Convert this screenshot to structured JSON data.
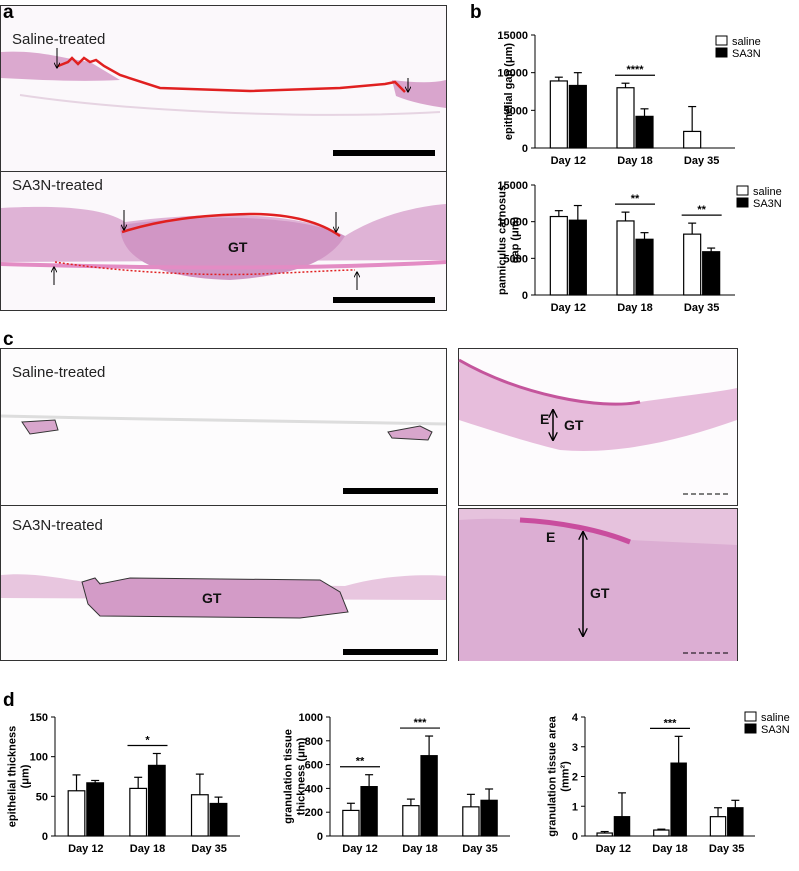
{
  "panel_labels": [
    "a",
    "b",
    "c",
    "d"
  ],
  "images": {
    "a_saline": {
      "title": "Saline-treated"
    },
    "a_sa3n": {
      "title": "SA3N-treated",
      "label": "GT"
    },
    "c_saline": {
      "title": "Saline-treated"
    },
    "c_sa3n": {
      "title": "SA3N-treated",
      "label": "GT"
    },
    "c_saline_zoom": {
      "labels": [
        "E",
        "GT"
      ]
    },
    "c_sa3n_zoom": {
      "labels": [
        "E",
        "GT"
      ]
    }
  },
  "chart_data": [
    {
      "type": "bar",
      "categories": [
        "Day 12",
        "Day 18",
        "Day 35"
      ],
      "ylabel": [
        "epithelial gap (μm)"
      ],
      "series": [
        {
          "name": "saline",
          "color": "#ffffff",
          "values": [
            8900,
            8000,
            2200
          ],
          "errors": [
            500,
            600,
            3300
          ]
        },
        {
          "name": "SA3N",
          "color": "#000000",
          "values": [
            8300,
            4200,
            null
          ],
          "errors": [
            1700,
            1000,
            null
          ]
        }
      ],
      "ylim": [
        0,
        15000
      ],
      "yticks": [
        0,
        5000,
        10000,
        15000
      ],
      "legend": true,
      "annotations": [
        {
          "text": "****",
          "x": "Day 18"
        }
      ]
    },
    {
      "type": "bar",
      "categories": [
        "Day 12",
        "Day 18",
        "Day 35"
      ],
      "ylabel": [
        "panniculus carnosus",
        "gap (μm)"
      ],
      "series": [
        {
          "name": "saline",
          "color": "#ffffff",
          "values": [
            10700,
            10100,
            8300
          ],
          "errors": [
            800,
            1200,
            1500
          ]
        },
        {
          "name": "SA3N",
          "color": "#000000",
          "values": [
            10200,
            7600,
            5900
          ],
          "errors": [
            2000,
            900,
            500
          ]
        }
      ],
      "ylim": [
        0,
        15000
      ],
      "yticks": [
        0,
        5000,
        10000,
        15000
      ],
      "legend": true,
      "annotations": [
        {
          "text": "**",
          "x": "Day 18"
        },
        {
          "text": "**",
          "x": "Day 35"
        }
      ]
    },
    {
      "type": "bar",
      "categories": [
        "Day 12",
        "Day 18",
        "Day 35"
      ],
      "ylabel": [
        "epithelial thickness",
        "(μm)"
      ],
      "series": [
        {
          "color": "#ffffff",
          "values": [
            57,
            60,
            52
          ],
          "errors": [
            20,
            14,
            26
          ]
        },
        {
          "color": "#000000",
          "values": [
            67,
            89,
            41
          ],
          "errors": [
            3,
            15,
            8
          ]
        }
      ],
      "ylim": [
        0,
        150
      ],
      "yticks": [
        0,
        50,
        100,
        150
      ],
      "legend": false,
      "annotations": [
        {
          "text": "*",
          "x": "Day 18"
        }
      ]
    },
    {
      "type": "bar",
      "categories": [
        "Day 12",
        "Day 18",
        "Day 35"
      ],
      "ylabel": [
        "granulation tissue",
        "thickness (μm)"
      ],
      "series": [
        {
          "color": "#ffffff",
          "values": [
            215,
            255,
            245
          ],
          "errors": [
            60,
            55,
            105
          ]
        },
        {
          "color": "#000000",
          "values": [
            415,
            675,
            300
          ],
          "errors": [
            100,
            165,
            95
          ]
        }
      ],
      "ylim": [
        0,
        1000
      ],
      "yticks": [
        0,
        200,
        400,
        600,
        800,
        1000
      ],
      "legend": false,
      "annotations": [
        {
          "text": "**",
          "x": "Day 12"
        },
        {
          "text": "***",
          "x": "Day 18"
        }
      ]
    },
    {
      "type": "bar",
      "categories": [
        "Day 12",
        "Day 18",
        "Day 35"
      ],
      "ylabel": [
        "granulation tissue area",
        "(mm²)"
      ],
      "series": [
        {
          "name": "saline",
          "color": "#ffffff",
          "values": [
            0.1,
            0.2,
            0.65
          ],
          "errors": [
            0.05,
            0.03,
            0.3
          ]
        },
        {
          "name": "SA3N",
          "color": "#000000",
          "values": [
            0.65,
            2.45,
            0.95
          ],
          "errors": [
            0.8,
            0.9,
            0.25
          ]
        }
      ],
      "ylim": [
        0,
        4
      ],
      "yticks": [
        0,
        1,
        2,
        3,
        4
      ],
      "legend": true,
      "annotations": [
        {
          "text": "***",
          "x": "Day 18"
        }
      ]
    }
  ]
}
